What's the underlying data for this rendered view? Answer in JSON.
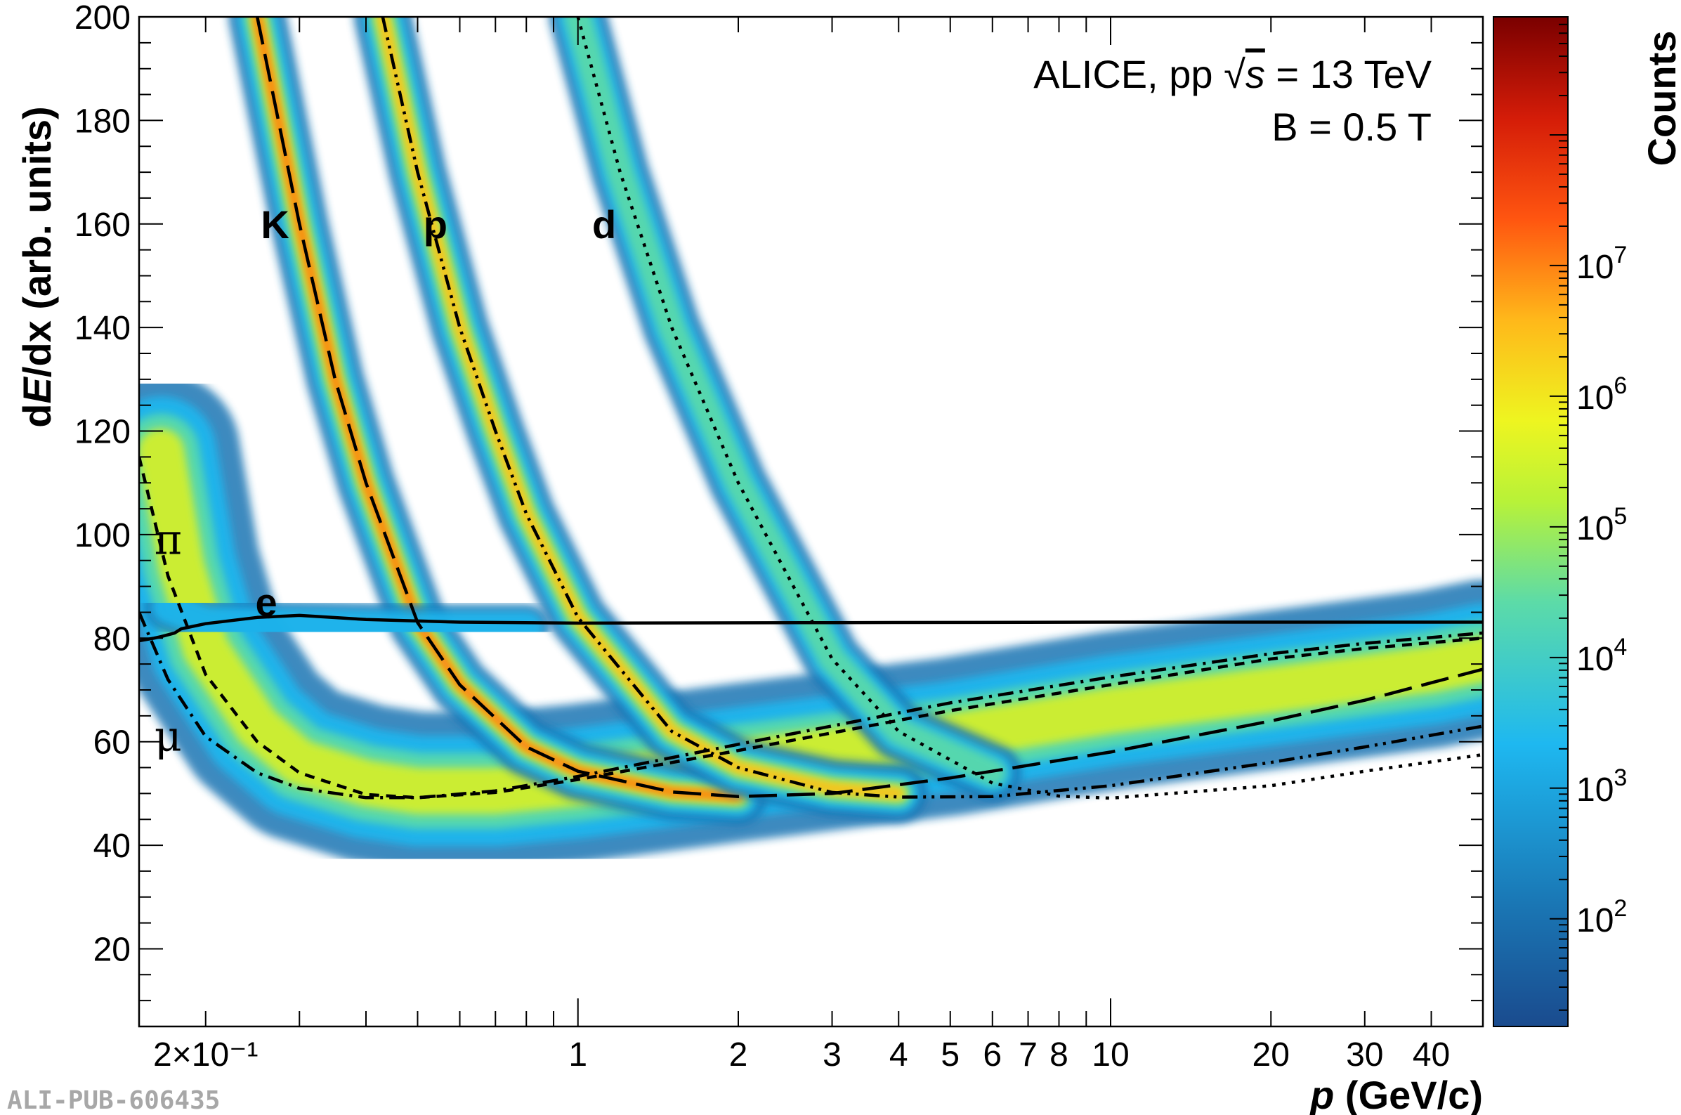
{
  "chart_data": {
    "type": "heatmap",
    "title": "",
    "xlabel_italic": "p",
    "xlabel_rest": " (GeV/c)",
    "ylabel_prefix": "d",
    "ylabel_italic": "E",
    "ylabel_suffix": "/dx (arb. units)",
    "zlabel": "Counts",
    "x_scale": "log",
    "xlim": [
      0.15,
      50
    ],
    "ylim": [
      5,
      200
    ],
    "y_ticks": [
      20,
      40,
      60,
      80,
      100,
      120,
      140,
      160,
      180,
      200
    ],
    "x_ticks": [
      {
        "value": 0.2,
        "label": "2×10⁻¹"
      },
      {
        "value": 1,
        "label": "1"
      },
      {
        "value": 2,
        "label": "2"
      },
      {
        "value": 3,
        "label": "3"
      },
      {
        "value": 4,
        "label": "4"
      },
      {
        "value": 5,
        "label": "5"
      },
      {
        "value": 6,
        "label": "6"
      },
      {
        "value": 7,
        "label": "7"
      },
      {
        "value": 8,
        "label": "8"
      },
      {
        "value": 10,
        "label": "10"
      },
      {
        "value": 20,
        "label": "20"
      },
      {
        "value": 30,
        "label": "30"
      },
      {
        "value": 40,
        "label": "40"
      }
    ],
    "z_scale": "log",
    "zlim": [
      15,
      800000000
    ],
    "z_ticks": [
      {
        "value": 100,
        "mantissa": "10",
        "exp": "2"
      },
      {
        "value": 1000,
        "mantissa": "10",
        "exp": "3"
      },
      {
        "value": 10000,
        "mantissa": "10",
        "exp": "4"
      },
      {
        "value": 100000,
        "mantissa": "10",
        "exp": "5"
      },
      {
        "value": 1000000,
        "mantissa": "10",
        "exp": "6"
      },
      {
        "value": 10000000,
        "mantissa": "10",
        "exp": "7"
      }
    ],
    "annotation": {
      "line1_pre": "ALICE, pp ",
      "sqrt_sym": "√",
      "line1_var": "s",
      "line1_post": " = 13 TeV",
      "line2": "B = 0.5 T"
    },
    "particle_labels": [
      {
        "text": "K",
        "x": 0.27,
        "y": 160
      },
      {
        "text": "p",
        "x": 0.54,
        "y": 160
      },
      {
        "text": "d",
        "x": 1.12,
        "y": 160
      },
      {
        "text": "e",
        "x": 0.26,
        "y": 87
      },
      {
        "text": "π",
        "x": 0.17,
        "y": 99
      },
      {
        "text": "μ",
        "x": 0.17,
        "y": 61
      }
    ],
    "curves": [
      {
        "particle": "e",
        "style": "solid",
        "points": [
          [
            0.15,
            79.5
          ],
          [
            0.16,
            80
          ],
          [
            0.165,
            80.3
          ],
          [
            0.175,
            81
          ],
          [
            0.18,
            81.8
          ],
          [
            0.2,
            82.8
          ],
          [
            0.25,
            84
          ],
          [
            0.3,
            84.4
          ],
          [
            0.4,
            83.6
          ],
          [
            0.6,
            83.1
          ],
          [
            1,
            82.9
          ],
          [
            3,
            83
          ],
          [
            10,
            83.1
          ],
          [
            50,
            83.1
          ]
        ]
      },
      {
        "particle": "pi",
        "style": "dashed",
        "points": [
          [
            0.15,
            115
          ],
          [
            0.17,
            92
          ],
          [
            0.2,
            73
          ],
          [
            0.25,
            60
          ],
          [
            0.3,
            54
          ],
          [
            0.4,
            49.8
          ],
          [
            0.5,
            49.2
          ],
          [
            0.7,
            50.2
          ],
          [
            1,
            52.7
          ],
          [
            2,
            58.3
          ],
          [
            5,
            66
          ],
          [
            10,
            71
          ],
          [
            20,
            76
          ],
          [
            30,
            78
          ],
          [
            50,
            80
          ]
        ]
      },
      {
        "particle": "mu",
        "style": "dashdot",
        "points": [
          [
            0.15,
            85
          ],
          [
            0.17,
            72
          ],
          [
            0.2,
            61
          ],
          [
            0.25,
            54
          ],
          [
            0.3,
            51
          ],
          [
            0.4,
            49.2
          ],
          [
            0.5,
            49.2
          ],
          [
            0.7,
            50.5
          ],
          [
            1,
            53.3
          ],
          [
            2,
            59.5
          ],
          [
            5,
            67.5
          ],
          [
            10,
            72.5
          ],
          [
            20,
            77
          ],
          [
            30,
            79
          ],
          [
            50,
            81
          ]
        ]
      },
      {
        "particle": "K",
        "style": "longdash",
        "points": [
          [
            0.25,
            200
          ],
          [
            0.3,
            160
          ],
          [
            0.35,
            130
          ],
          [
            0.4,
            110
          ],
          [
            0.5,
            83
          ],
          [
            0.6,
            71
          ],
          [
            0.8,
            59
          ],
          [
            1,
            54.3
          ],
          [
            1.5,
            50.3
          ],
          [
            2,
            49.4
          ],
          [
            3,
            50
          ],
          [
            5,
            53
          ],
          [
            10,
            58
          ],
          [
            20,
            64
          ],
          [
            30,
            68
          ],
          [
            50,
            74
          ]
        ]
      },
      {
        "particle": "p",
        "style": "dashdotdot",
        "points": [
          [
            0.43,
            200
          ],
          [
            0.5,
            170
          ],
          [
            0.6,
            140
          ],
          [
            0.7,
            120
          ],
          [
            0.8,
            104
          ],
          [
            1,
            84
          ],
          [
            1.5,
            62
          ],
          [
            2,
            55
          ],
          [
            3,
            50.2
          ],
          [
            4,
            49.3
          ],
          [
            6,
            49.4
          ],
          [
            10,
            51.5
          ],
          [
            20,
            56
          ],
          [
            30,
            59
          ],
          [
            50,
            63
          ]
        ]
      },
      {
        "particle": "d",
        "style": "dotted",
        "points": [
          [
            1,
            200
          ],
          [
            1.2,
            170
          ],
          [
            1.5,
            140
          ],
          [
            2,
            110
          ],
          [
            3,
            76
          ],
          [
            4,
            62
          ],
          [
            6,
            52
          ],
          [
            8,
            49.5
          ],
          [
            10,
            49.1
          ],
          [
            20,
            51.5
          ],
          [
            30,
            54.3
          ],
          [
            50,
            57.5
          ]
        ]
      }
    ],
    "density_bands": [
      {
        "name": "pi",
        "level": 4.2,
        "points": [
          [
            0.165,
            116
          ],
          [
            0.18,
            94
          ],
          [
            0.2,
            78
          ],
          [
            0.25,
            63
          ],
          [
            0.3,
            56
          ],
          [
            0.4,
            52
          ],
          [
            0.5,
            50.5
          ],
          [
            0.7,
            50.5
          ],
          [
            1,
            52
          ],
          [
            2,
            56
          ],
          [
            5,
            61
          ],
          [
            10,
            66
          ],
          [
            20,
            70
          ],
          [
            40,
            74
          ],
          [
            50,
            76
          ]
        ]
      },
      {
        "name": "K",
        "level": 5.2,
        "points": [
          [
            0.25,
            200
          ],
          [
            0.3,
            160
          ],
          [
            0.35,
            130
          ],
          [
            0.4,
            110
          ],
          [
            0.5,
            83
          ],
          [
            0.6,
            71
          ],
          [
            0.8,
            59
          ],
          [
            1,
            54.3
          ],
          [
            1.5,
            50.3
          ],
          [
            2,
            49.4
          ]
        ]
      },
      {
        "name": "p",
        "level": 5.0,
        "points": [
          [
            0.43,
            200
          ],
          [
            0.5,
            170
          ],
          [
            0.6,
            140
          ],
          [
            0.7,
            120
          ],
          [
            0.8,
            104
          ],
          [
            1,
            84
          ],
          [
            1.5,
            62
          ],
          [
            2,
            55
          ],
          [
            3,
            51
          ],
          [
            4,
            50
          ]
        ]
      },
      {
        "name": "d",
        "level": 3.6,
        "points": [
          [
            1,
            200
          ],
          [
            1.2,
            170
          ],
          [
            1.5,
            140
          ],
          [
            2,
            110
          ],
          [
            3,
            76
          ],
          [
            4,
            62
          ],
          [
            6,
            54
          ]
        ]
      },
      {
        "name": "e",
        "level": 3.4,
        "points": [
          [
            0.17,
            86
          ],
          [
            0.2,
            83
          ],
          [
            0.3,
            82.5
          ],
          [
            0.5,
            82
          ],
          [
            0.8,
            82
          ]
        ]
      }
    ]
  },
  "footer": {
    "pub_id": "ALI-PUB-606435"
  }
}
